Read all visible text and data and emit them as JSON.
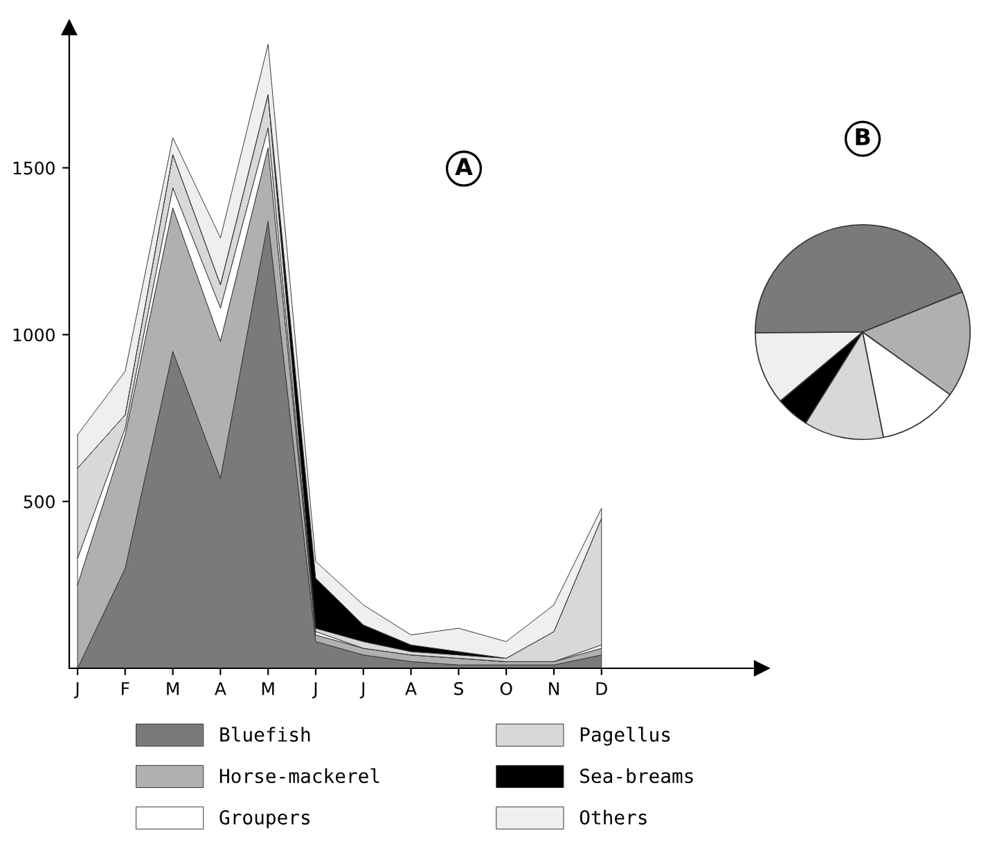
{
  "chart_data": [
    {
      "type": "area",
      "stacked": true,
      "title": "A",
      "categories": [
        "J",
        "F",
        "M",
        "A",
        "M",
        "J",
        "J",
        "A",
        "S",
        "O",
        "N",
        "D"
      ],
      "series": [
        {
          "name": "Bluefish",
          "color": "#7a7a7a",
          "values": [
            0,
            300,
            950,
            570,
            1340,
            80,
            40,
            20,
            10,
            10,
            10,
            40
          ]
        },
        {
          "name": "Horse-mackerel",
          "color": "#b0b0b0",
          "values": [
            250,
            400,
            430,
            410,
            220,
            20,
            20,
            20,
            20,
            10,
            10,
            20
          ]
        },
        {
          "name": "Groupers",
          "color": "#ffffff",
          "values": [
            80,
            20,
            60,
            100,
            60,
            10,
            0,
            0,
            0,
            0,
            0,
            10
          ]
        },
        {
          "name": "Pagellus",
          "color": "#d8d8d8",
          "values": [
            270,
            40,
            100,
            70,
            100,
            10,
            20,
            10,
            10,
            10,
            90,
            380
          ]
        },
        {
          "name": "Sea-breams",
          "color": "#000000",
          "values": [
            0,
            0,
            0,
            0,
            0,
            150,
            50,
            20,
            10,
            0,
            0,
            0
          ]
        },
        {
          "name": "Others",
          "color": "#efefef",
          "values": [
            100,
            130,
            50,
            140,
            150,
            50,
            60,
            30,
            70,
            50,
            80,
            30
          ]
        }
      ],
      "ylim": [
        0,
        1920
      ],
      "yticks": [
        500,
        1000,
        1500
      ],
      "grid": false,
      "legend": "bottom"
    },
    {
      "type": "pie",
      "title": "B",
      "categories": [
        null,
        null,
        null,
        null,
        null,
        null
      ],
      "values": [
        44,
        11,
        5,
        12,
        12,
        16
      ],
      "colors": [
        "#7a7a7a",
        "#efefef",
        "#000000",
        "#d8d8d8",
        "#ffffff",
        "#b0b0b0"
      ]
    }
  ]
}
